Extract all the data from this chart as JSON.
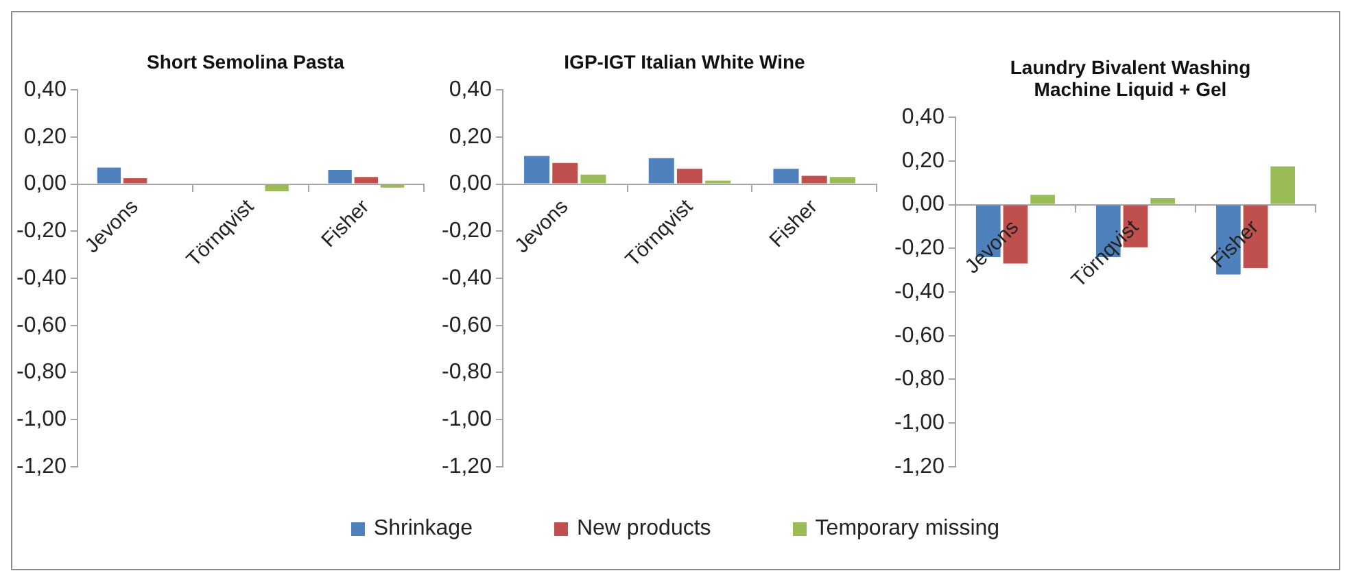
{
  "chart_data": [
    {
      "type": "bar",
      "title": "Short Semolina Pasta",
      "categories": [
        "Jevons",
        "Törnqvist",
        "Fisher"
      ],
      "ylim": [
        -1.2,
        0.4
      ],
      "yticks": [
        {
          "value": -1.2,
          "label": "-1,20"
        },
        {
          "value": -1.0,
          "label": "-1,00"
        },
        {
          "value": -0.8,
          "label": "-0,80"
        },
        {
          "value": -0.6,
          "label": "-0,60"
        },
        {
          "value": -0.4,
          "label": "-0,40"
        },
        {
          "value": -0.2,
          "label": "-0,20"
        },
        {
          "value": 0,
          "label": "0,00"
        },
        {
          "value": 0.2,
          "label": "0,20"
        },
        {
          "value": 0.4,
          "label": "0,40"
        }
      ],
      "grid": false,
      "legend": "bottom",
      "series": [
        {
          "name": "Shrinkage",
          "color": "#4f81bd",
          "values": [
            0.07,
            0,
            0.06
          ]
        },
        {
          "name": "New products",
          "color": "#c0504d",
          "values": [
            0.025,
            0,
            0.03
          ]
        },
        {
          "name": "Temporary missing",
          "color": "#9bbb59",
          "values": [
            0,
            -0.03,
            -0.015
          ]
        }
      ]
    },
    {
      "type": "bar",
      "title": "IGP-IGT Italian White Wine",
      "categories": [
        "Jevons",
        "Törnqvist",
        "Fisher"
      ],
      "ylim": [
        -1.2,
        0.4
      ],
      "yticks": [
        {
          "value": -1.2,
          "label": "-1,20"
        },
        {
          "value": -1.0,
          "label": "-1,00"
        },
        {
          "value": -0.8,
          "label": "-0,80"
        },
        {
          "value": -0.6,
          "label": "-0,60"
        },
        {
          "value": -0.4,
          "label": "-0,40"
        },
        {
          "value": -0.2,
          "label": "-0,20"
        },
        {
          "value": 0,
          "label": "0,00"
        },
        {
          "value": 0.2,
          "label": "0,20"
        },
        {
          "value": 0.4,
          "label": "0,40"
        }
      ],
      "grid": false,
      "legend": "bottom",
      "series": [
        {
          "name": "Shrinkage",
          "color": "#4f81bd",
          "values": [
            0.12,
            0.11,
            0.065
          ]
        },
        {
          "name": "New products",
          "color": "#c0504d",
          "values": [
            0.09,
            0.065,
            0.035
          ]
        },
        {
          "name": "Temporary missing",
          "color": "#9bbb59",
          "values": [
            0.04,
            0.015,
            0.03
          ]
        }
      ]
    },
    {
      "type": "bar",
      "title": "Laundry Bivalent Washing Machine Liquid + Gel",
      "categories": [
        "Jevons",
        "Törnqvist",
        "Fisher"
      ],
      "ylim": [
        -1.2,
        0.4
      ],
      "yticks": [
        {
          "value": -1.2,
          "label": "-1,20"
        },
        {
          "value": -1.0,
          "label": "-1,00"
        },
        {
          "value": -0.8,
          "label": "-0,80"
        },
        {
          "value": -0.6,
          "label": "-0,60"
        },
        {
          "value": -0.4,
          "label": "-0,40"
        },
        {
          "value": -0.2,
          "label": "-0,20"
        },
        {
          "value": 0,
          "label": "0,00"
        },
        {
          "value": 0.2,
          "label": "0,20"
        },
        {
          "value": 0.4,
          "label": "0,40"
        }
      ],
      "grid": false,
      "legend": "bottom",
      "series": [
        {
          "name": "Shrinkage",
          "color": "#4f81bd",
          "values": [
            -0.24,
            -0.24,
            -0.32
          ]
        },
        {
          "name": "New products",
          "color": "#c0504d",
          "values": [
            -0.27,
            -0.195,
            -0.29
          ]
        },
        {
          "name": "Temporary missing",
          "color": "#9bbb59",
          "values": [
            0.045,
            0.03,
            0.175
          ]
        }
      ]
    }
  ]
}
